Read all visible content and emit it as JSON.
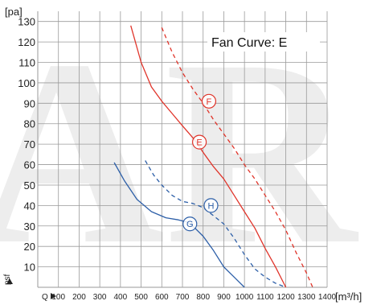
{
  "chart_data": {
    "type": "line",
    "title": "Fan Curve: E",
    "ylabel": "[pa]",
    "xlabel": "[m³/h]",
    "y_side_label": "psf",
    "x_prefix_label": "Q",
    "xlim": [
      0,
      1400
    ],
    "ylim": [
      0,
      135
    ],
    "x_ticks": [
      100,
      200,
      300,
      400,
      500,
      600,
      700,
      800,
      900,
      1000,
      1100,
      1200,
      1300,
      1400
    ],
    "y_ticks": [
      10,
      20,
      30,
      40,
      50,
      60,
      70,
      80,
      90,
      100,
      110,
      120,
      130
    ],
    "grid": true,
    "watermark": "AR",
    "colors": {
      "red": "#e0342a",
      "blue": "#2d5fa8",
      "grid": "#9a9a9a"
    },
    "series": [
      {
        "name": "E",
        "color": "#e0342a",
        "style": "solid",
        "points": [
          [
            450,
            128
          ],
          [
            500,
            110
          ],
          [
            550,
            98
          ],
          [
            600,
            91
          ],
          [
            650,
            85
          ],
          [
            700,
            79
          ],
          [
            760,
            72
          ],
          [
            800,
            66
          ],
          [
            850,
            59
          ],
          [
            900,
            53
          ],
          [
            950,
            45
          ],
          [
            1000,
            37
          ],
          [
            1050,
            29
          ],
          [
            1100,
            19
          ],
          [
            1150,
            10
          ],
          [
            1200,
            0
          ]
        ],
        "label_at": [
          782,
          71
        ]
      },
      {
        "name": "F",
        "color": "#e0342a",
        "style": "dashed",
        "points": [
          [
            600,
            127
          ],
          [
            650,
            115
          ],
          [
            700,
            105
          ],
          [
            750,
            97
          ],
          [
            800,
            90
          ],
          [
            850,
            82
          ],
          [
            900,
            75
          ],
          [
            950,
            68
          ],
          [
            1000,
            60
          ],
          [
            1050,
            53
          ],
          [
            1100,
            45
          ],
          [
            1150,
            37
          ],
          [
            1200,
            28
          ],
          [
            1250,
            17
          ],
          [
            1300,
            7
          ],
          [
            1330,
            0
          ]
        ],
        "label_at": [
          828,
          91
        ]
      },
      {
        "name": "G",
        "color": "#2d5fa8",
        "style": "solid",
        "points": [
          [
            370,
            61
          ],
          [
            420,
            52
          ],
          [
            480,
            43
          ],
          [
            550,
            37
          ],
          [
            620,
            34
          ],
          [
            680,
            33
          ],
          [
            720,
            32
          ],
          [
            760,
            29
          ],
          [
            800,
            25
          ],
          [
            850,
            18
          ],
          [
            900,
            10
          ],
          [
            950,
            5
          ],
          [
            1000,
            0
          ]
        ],
        "label_at": [
          736,
          31
        ]
      },
      {
        "name": "H",
        "color": "#2d5fa8",
        "style": "dashed",
        "points": [
          [
            520,
            62
          ],
          [
            560,
            55
          ],
          [
            600,
            50
          ],
          [
            650,
            45
          ],
          [
            700,
            42
          ],
          [
            750,
            41
          ],
          [
            800,
            39
          ],
          [
            850,
            35
          ],
          [
            900,
            31
          ],
          [
            950,
            24
          ],
          [
            1000,
            16
          ],
          [
            1050,
            9
          ],
          [
            1100,
            5
          ],
          [
            1150,
            2
          ],
          [
            1200,
            0
          ]
        ],
        "label_at": [
          838,
          40
        ]
      }
    ]
  }
}
